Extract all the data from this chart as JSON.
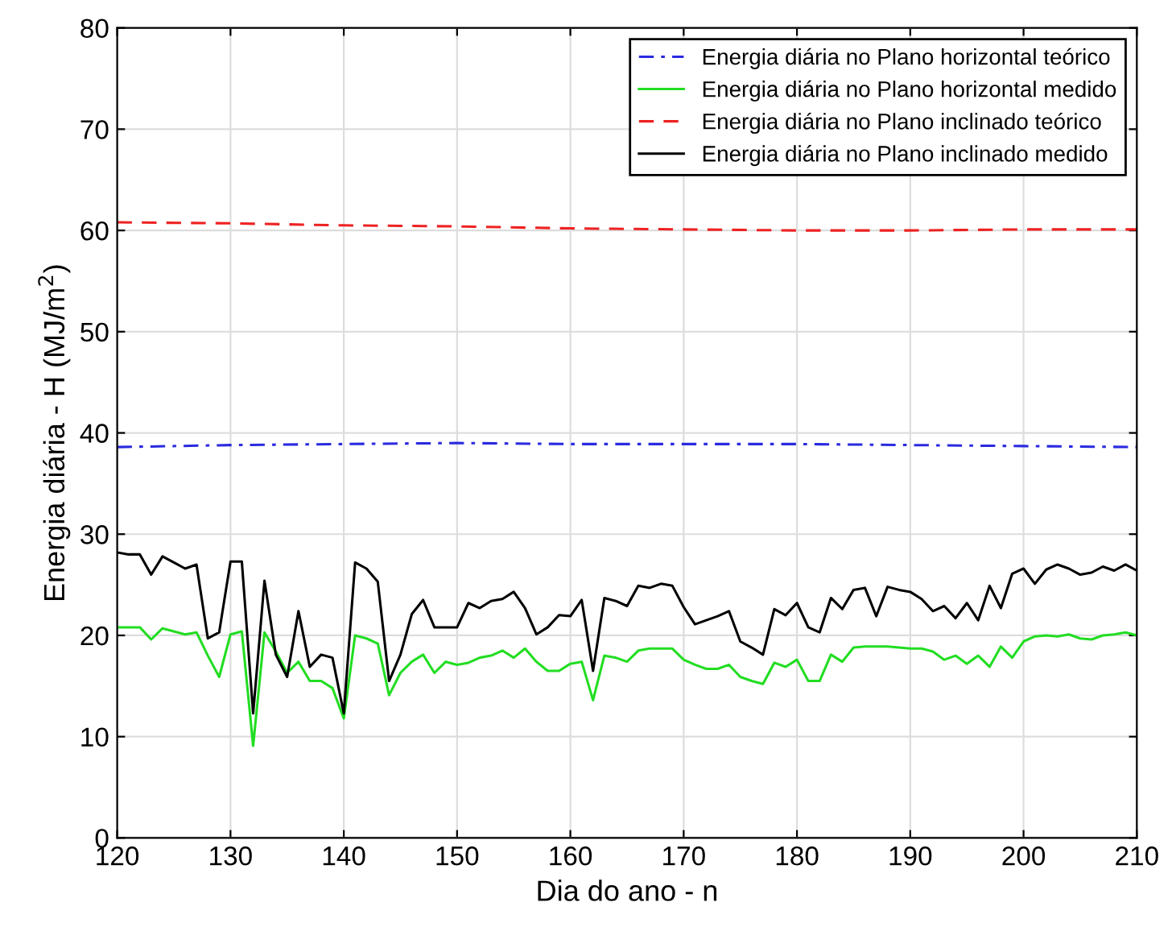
{
  "chart_data": {
    "type": "line",
    "xlabel": "Dia do ano - n",
    "ylabel": "Energia diária - H (MJ/m$^{2}$)",
    "x": [
      120,
      121,
      122,
      123,
      124,
      125,
      126,
      127,
      128,
      129,
      130,
      131,
      132,
      133,
      134,
      135,
      136,
      137,
      138,
      139,
      140,
      141,
      142,
      143,
      144,
      145,
      146,
      147,
      148,
      149,
      150,
      151,
      152,
      153,
      154,
      155,
      156,
      157,
      158,
      159,
      160,
      161,
      162,
      163,
      164,
      165,
      166,
      167,
      168,
      169,
      170,
      171,
      172,
      173,
      174,
      175,
      176,
      177,
      178,
      179,
      180,
      181,
      182,
      183,
      184,
      185,
      186,
      187,
      188,
      189,
      190,
      191,
      192,
      193,
      194,
      195,
      196,
      197,
      198,
      199,
      200,
      201,
      202,
      203,
      204,
      205,
      206,
      207,
      208,
      209,
      210
    ],
    "xlim": [
      120,
      210
    ],
    "ylim": [
      0,
      80
    ],
    "xticks": [
      120,
      130,
      140,
      150,
      160,
      170,
      180,
      190,
      200,
      210
    ],
    "yticks": [
      0,
      10,
      20,
      30,
      40,
      50,
      60,
      70,
      80
    ],
    "grid": true,
    "legend": "top right",
    "series": [
      {
        "name": "Energia diária no Plano horizontal teórico",
        "color": "#2a2ae0",
        "line_style": "dashdot",
        "x": [
          120,
          130,
          140,
          150,
          160,
          170,
          180,
          190,
          200,
          210
        ],
        "values": [
          38.6,
          38.8,
          38.9,
          39.0,
          38.9,
          38.9,
          38.9,
          38.8,
          38.7,
          38.6
        ]
      },
      {
        "name": "Energia diária no Plano horizontal medido",
        "color": "#22dd22",
        "line_style": "solid",
        "values": [
          20.8,
          20.8,
          20.8,
          19.6,
          20.7,
          20.4,
          20.1,
          20.3,
          18.0,
          15.9,
          20.1,
          20.4,
          9.1,
          20.3,
          18.4,
          16.3,
          17.4,
          15.5,
          15.5,
          14.8,
          11.8,
          20.0,
          19.7,
          19.2,
          14.1,
          16.3,
          17.4,
          18.1,
          16.3,
          17.4,
          17.1,
          17.3,
          17.8,
          18.0,
          18.5,
          17.8,
          18.7,
          17.4,
          16.5,
          16.5,
          17.2,
          17.4,
          13.6,
          18.0,
          17.8,
          17.4,
          18.5,
          18.7,
          18.7,
          18.7,
          17.6,
          17.1,
          16.7,
          16.7,
          17.1,
          15.9,
          15.5,
          15.2,
          17.3,
          16.9,
          17.6,
          15.5,
          15.5,
          18.1,
          17.4,
          18.8,
          18.9,
          18.9,
          18.9,
          18.8,
          18.7,
          18.7,
          18.4,
          17.6,
          18.0,
          17.2,
          18.0,
          16.9,
          18.9,
          17.8,
          19.4,
          19.9,
          20.0,
          19.9,
          20.1,
          19.7,
          19.6,
          20.0,
          20.1,
          20.3,
          20.0
        ]
      },
      {
        "name": "Energia diária no Plano inclinado teórico",
        "color": "#ee2222",
        "line_style": "dashed",
        "x": [
          120,
          130,
          140,
          150,
          160,
          170,
          180,
          190,
          200,
          210
        ],
        "values": [
          60.8,
          60.7,
          60.5,
          60.4,
          60.2,
          60.1,
          60.0,
          60.0,
          60.1,
          60.1
        ]
      },
      {
        "name": "Energia diária no Plano inclinado medido",
        "color": "#000000",
        "line_style": "solid",
        "values": [
          28.2,
          28.0,
          28.0,
          26.0,
          27.8,
          27.2,
          26.6,
          27.0,
          19.7,
          20.3,
          27.3,
          27.3,
          12.3,
          25.4,
          18.1,
          15.9,
          22.4,
          16.9,
          18.1,
          17.8,
          12.3,
          27.2,
          26.6,
          25.3,
          15.5,
          18.1,
          22.1,
          23.5,
          20.8,
          20.8,
          20.8,
          23.2,
          22.7,
          23.4,
          23.6,
          24.3,
          22.7,
          20.1,
          20.8,
          22.0,
          21.9,
          23.5,
          16.5,
          23.7,
          23.4,
          22.9,
          24.9,
          24.7,
          25.1,
          24.9,
          22.8,
          21.1,
          21.5,
          21.9,
          22.4,
          19.4,
          18.8,
          18.1,
          22.6,
          22.0,
          23.2,
          20.8,
          20.3,
          23.7,
          22.6,
          24.5,
          24.7,
          21.9,
          24.8,
          24.5,
          24.3,
          23.6,
          22.4,
          22.9,
          21.7,
          23.2,
          21.5,
          24.9,
          22.7,
          26.1,
          26.6,
          25.1,
          26.5,
          27.0,
          26.6,
          26.0,
          26.2,
          26.8,
          26.4,
          27.0,
          26.4
        ]
      }
    ]
  }
}
